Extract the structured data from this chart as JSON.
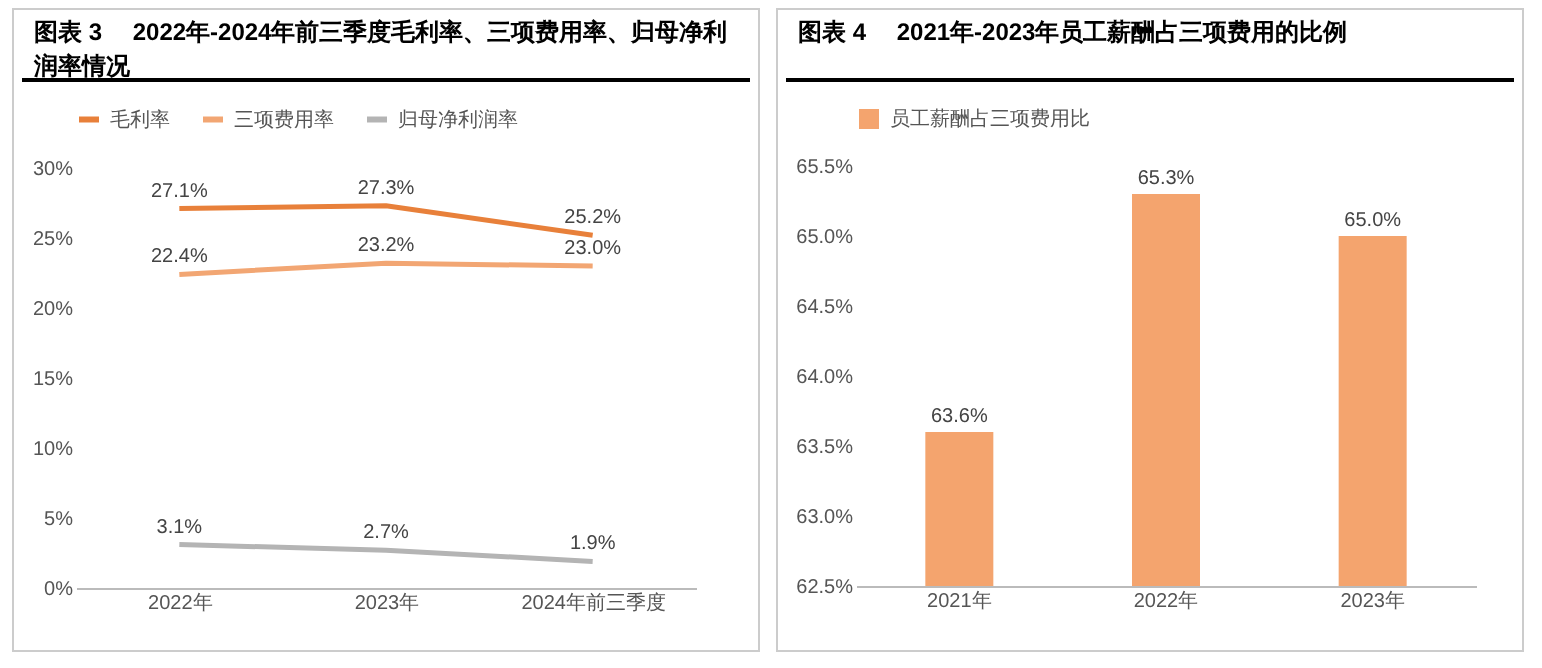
{
  "chart_data": [
    {
      "type": "line",
      "title": "图表 3　 2022年-2024年前三季度毛利率、三项费用率、归母净利润率情况",
      "categories": [
        "2022年",
        "2023年",
        "2024年前三季度"
      ],
      "series": [
        {
          "name": "毛利率",
          "color": "#e8803a",
          "values": [
            27.1,
            27.3,
            25.2
          ],
          "value_labels": [
            "27.1%",
            "27.3%",
            "25.2%"
          ]
        },
        {
          "name": "三项费用率",
          "color": "#f2a673",
          "values": [
            22.4,
            23.2,
            23.0
          ],
          "value_labels": [
            "22.4%",
            "23.2%",
            "23.0%"
          ]
        },
        {
          "name": "归母净利润率",
          "color": "#b4b4b4",
          "values": [
            3.1,
            2.7,
            1.9
          ],
          "value_labels": [
            "3.1%",
            "2.7%",
            "1.9%"
          ]
        }
      ],
      "ylim": [
        0,
        30
      ],
      "yticks": [
        {
          "value": 0,
          "label": "0%"
        },
        {
          "value": 5,
          "label": "5%"
        },
        {
          "value": 10,
          "label": "10%"
        },
        {
          "value": 15,
          "label": "15%"
        },
        {
          "value": 20,
          "label": "20%"
        },
        {
          "value": 25,
          "label": "25%"
        },
        {
          "value": 30,
          "label": "30%"
        }
      ],
      "grid": false,
      "legend": "top",
      "marker": "none",
      "line_style": "solid"
    },
    {
      "type": "bar",
      "title": "图表 4　 2021年-2023年员工薪酬占三项费用的比例",
      "categories": [
        "2021年",
        "2022年",
        "2023年"
      ],
      "series": [
        {
          "name": "员工薪酬占三项费用比",
          "color": "#f4a46e",
          "values": [
            63.6,
            65.3,
            65.0
          ],
          "value_labels": [
            "63.6%",
            "65.3%",
            "65.0%"
          ]
        }
      ],
      "ylim": [
        62.5,
        65.5
      ],
      "yticks": [
        {
          "value": 62.5,
          "label": "62.5%"
        },
        {
          "value": 63,
          "label": "63.0%"
        },
        {
          "value": 63.5,
          "label": "63.5%"
        },
        {
          "value": 64,
          "label": "64.0%"
        },
        {
          "value": 64.5,
          "label": "64.5%"
        },
        {
          "value": 65,
          "label": "65.0%"
        },
        {
          "value": 65.5,
          "label": "65.5%"
        }
      ],
      "grid": false,
      "legend": "top"
    }
  ]
}
